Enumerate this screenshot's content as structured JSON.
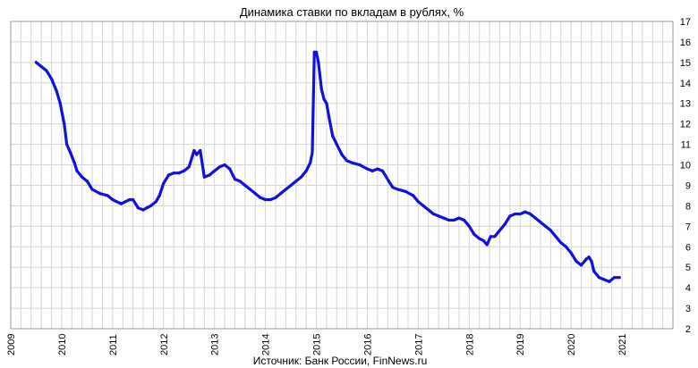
{
  "chart_data": {
    "type": "line",
    "title": "Динамика ставки по вкладам в рублях, %",
    "source": "Источник: Банк России, FinNews.ru",
    "xlabel": "",
    "ylabel": "",
    "xlim": [
      2009,
      2022
    ],
    "ylim": [
      2,
      17
    ],
    "x_ticks": [
      "2009",
      "2010",
      "2011",
      "2012",
      "2013",
      "2014",
      "2015",
      "2016",
      "2017",
      "2018",
      "2019",
      "2020",
      "2021"
    ],
    "y_ticks": [
      "2",
      "3",
      "4",
      "5",
      "6",
      "7",
      "8",
      "9",
      "10",
      "11",
      "12",
      "13",
      "14",
      "15",
      "16",
      "17"
    ],
    "y_axis_position": "right",
    "grid": true,
    "line_color": "#1010e0",
    "series": [
      {
        "x": [
          2009.5,
          2009.6,
          2009.7,
          2009.8,
          2009.9,
          2009.97,
          2010.05,
          2010.1,
          2010.17,
          2010.25,
          2010.3,
          2010.4,
          2010.5,
          2010.6,
          2010.75,
          2010.9,
          2011.0,
          2011.08,
          2011.17,
          2011.25,
          2011.33,
          2011.4,
          2011.5,
          2011.6,
          2011.67,
          2011.75,
          2011.85,
          2011.92,
          2012.0,
          2012.1,
          2012.2,
          2012.3,
          2012.4,
          2012.5,
          2012.55,
          2012.6,
          2012.65,
          2012.72,
          2012.8,
          2012.9,
          2013.0,
          2013.1,
          2013.2,
          2013.3,
          2013.4,
          2013.5,
          2013.6,
          2013.7,
          2013.8,
          2013.9,
          2014.0,
          2014.1,
          2014.2,
          2014.3,
          2014.4,
          2014.5,
          2014.6,
          2014.7,
          2014.8,
          2014.88,
          2014.92,
          2014.96,
          2015.0,
          2015.04,
          2015.1,
          2015.15,
          2015.2,
          2015.25,
          2015.32,
          2015.4,
          2015.5,
          2015.6,
          2015.7,
          2015.85,
          2016.0,
          2016.1,
          2016.2,
          2016.3,
          2016.35,
          2016.42,
          2016.5,
          2016.6,
          2016.75,
          2016.9,
          2017.0,
          2017.1,
          2017.2,
          2017.3,
          2017.4,
          2017.5,
          2017.6,
          2017.7,
          2017.8,
          2017.9,
          2018.0,
          2018.1,
          2018.2,
          2018.28,
          2018.35,
          2018.42,
          2018.5,
          2018.6,
          2018.7,
          2018.8,
          2018.9,
          2019.0,
          2019.1,
          2019.2,
          2019.3,
          2019.4,
          2019.5,
          2019.6,
          2019.7,
          2019.8,
          2019.9,
          2020.0,
          2020.1,
          2020.2,
          2020.3,
          2020.35,
          2020.4,
          2020.45,
          2020.55,
          2020.65,
          2020.75,
          2020.85,
          2020.95
        ],
        "values": [
          15.0,
          14.8,
          14.6,
          14.2,
          13.6,
          13.0,
          12.0,
          11.0,
          10.6,
          10.1,
          9.7,
          9.4,
          9.2,
          8.8,
          8.6,
          8.5,
          8.3,
          8.2,
          8.1,
          8.2,
          8.3,
          8.3,
          7.9,
          7.8,
          7.9,
          8.0,
          8.2,
          8.5,
          9.1,
          9.5,
          9.6,
          9.6,
          9.7,
          9.9,
          10.3,
          10.7,
          10.5,
          10.7,
          9.4,
          9.5,
          9.7,
          9.9,
          10.0,
          9.8,
          9.3,
          9.2,
          9.0,
          8.8,
          8.6,
          8.4,
          8.3,
          8.3,
          8.4,
          8.6,
          8.8,
          9.0,
          9.2,
          9.4,
          9.7,
          10.1,
          10.6,
          15.5,
          15.5,
          15.0,
          13.7,
          13.2,
          13.0,
          12.3,
          11.4,
          11.0,
          10.5,
          10.2,
          10.1,
          10.0,
          9.8,
          9.7,
          9.8,
          9.7,
          9.5,
          9.2,
          8.9,
          8.8,
          8.7,
          8.5,
          8.2,
          8.0,
          7.8,
          7.6,
          7.5,
          7.4,
          7.3,
          7.3,
          7.4,
          7.3,
          7.0,
          6.6,
          6.4,
          6.3,
          6.1,
          6.5,
          6.5,
          6.8,
          7.1,
          7.5,
          7.6,
          7.6,
          7.7,
          7.6,
          7.4,
          7.2,
          7.0,
          6.8,
          6.5,
          6.2,
          6.0,
          5.7,
          5.3,
          5.1,
          5.4,
          5.5,
          5.3,
          4.8,
          4.5,
          4.4,
          4.3,
          4.5,
          4.5
        ]
      }
    ]
  }
}
